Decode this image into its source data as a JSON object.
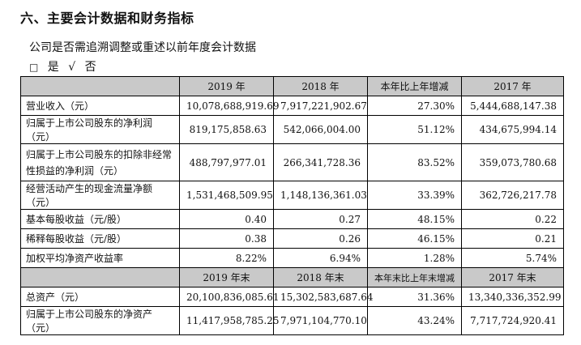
{
  "section_title": "六、主要会计数据和财务指标",
  "restate_question": "公司是否需追溯调整或重述以前年度会计数据",
  "restate_options": [
    {
      "mark": "□",
      "label": "是"
    },
    {
      "mark": "√",
      "label": "否"
    }
  ],
  "table1": {
    "headers": [
      "",
      "2019 年",
      "2018 年",
      "本年比上年增减",
      "2017 年"
    ],
    "rows": [
      {
        "label": "营业收入（元）",
        "v2019": "10,078,688,919.69",
        "v2018": "7,917,221,902.67",
        "change": "27.30%",
        "v2017": "5,444,688,147.38"
      },
      {
        "label": "归属于上市公司股东的净利润（元）",
        "v2019": "819,175,858.63",
        "v2018": "542,066,004.00",
        "change": "51.12%",
        "v2017": "434,675,994.14"
      },
      {
        "label": "归属于上市公司股东的扣除非经常性损益的净利润（元）",
        "v2019": "488,797,977.01",
        "v2018": "266,341,728.36",
        "change": "83.52%",
        "v2017": "359,073,780.68"
      },
      {
        "label": "经营活动产生的现金流量净额（元）",
        "v2019": "1,531,468,509.95",
        "v2018": "1,148,136,361.03",
        "change": "33.39%",
        "v2017": "362,726,217.78"
      },
      {
        "label": "基本每股收益（元/股）",
        "v2019": "0.40",
        "v2018": "0.27",
        "change": "48.15%",
        "v2017": "0.22"
      },
      {
        "label": "稀释每股收益（元/股）",
        "v2019": "0.38",
        "v2018": "0.26",
        "change": "46.15%",
        "v2017": "0.21"
      },
      {
        "label": "加权平均净资产收益率",
        "v2019": "8.22%",
        "v2018": "6.94%",
        "change": "1.28%",
        "v2017": "5.74%"
      }
    ]
  },
  "table2": {
    "headers": [
      "",
      "2019 年末",
      "2018 年末",
      "本年末比上年末增减",
      "2017 年末"
    ],
    "rows": [
      {
        "label": "总资产（元）",
        "v2019": "20,100,836,085.61",
        "v2018": "15,302,583,687.64",
        "change": "31.36%",
        "v2017": "13,340,336,352.99"
      },
      {
        "label": "归属于上市公司股东的净资产（元）",
        "v2019": "11,417,958,785.25",
        "v2018": "7,971,104,770.10",
        "change": "43.24%",
        "v2017": "7,717,724,920.41"
      }
    ]
  },
  "colors": {
    "header_bg": "#c9c9c9",
    "border": "#000000"
  }
}
